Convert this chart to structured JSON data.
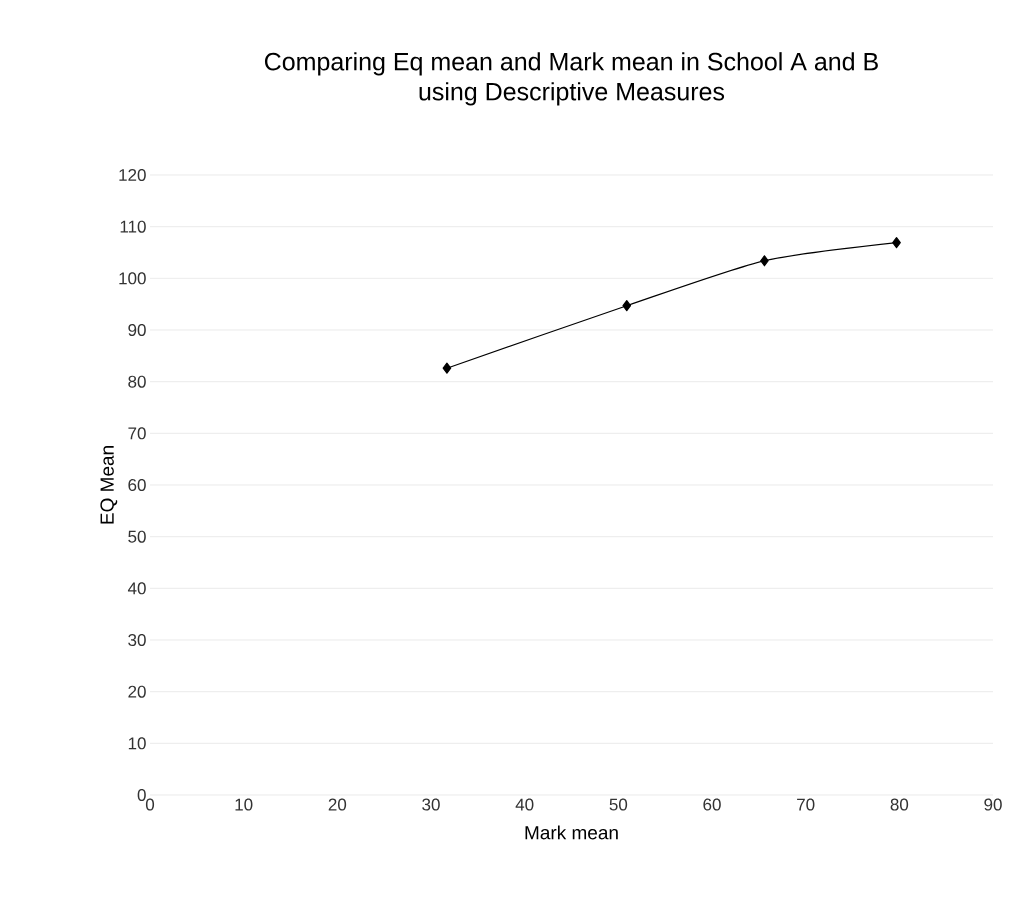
{
  "chart_data": {
    "type": "line",
    "title": "Comparing Eq mean and Mark mean in School A and B\nusing Descriptive Measures",
    "xlabel": "Mark mean",
    "ylabel": "EQ Mean",
    "x": [
      31.7,
      50.9,
      65.6,
      79.7
    ],
    "series": [
      {
        "color": "#000000",
        "values": [
          82.6,
          94.7,
          103.4,
          106.9
        ]
      }
    ],
    "xlim": [
      0,
      90
    ],
    "xticks": [
      0,
      10,
      20,
      30,
      40,
      50,
      60,
      70,
      80,
      90
    ],
    "ylim": [
      0,
      120
    ],
    "yticks": [
      0,
      10,
      20,
      30,
      40,
      50,
      60,
      70,
      80,
      90,
      100,
      110,
      120
    ],
    "grid": "y",
    "marker": "diamond",
    "line_style": "solid"
  }
}
